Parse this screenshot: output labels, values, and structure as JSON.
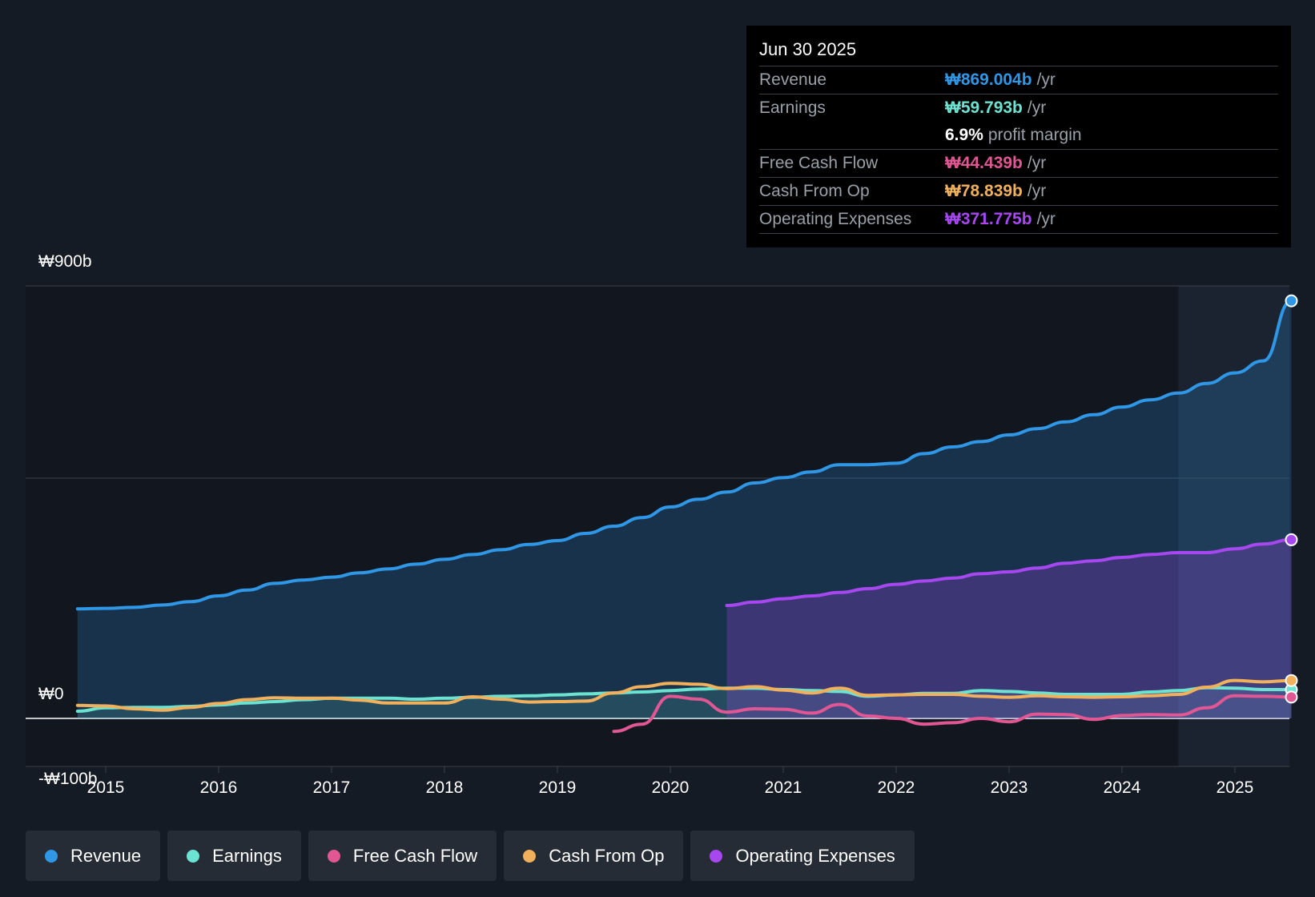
{
  "tooltip": {
    "date": "Jun 30 2025",
    "rows": [
      {
        "label": "Revenue",
        "value": "₩869.004b",
        "unit": "/yr",
        "color": "#2f97e6"
      },
      {
        "label": "Earnings",
        "value": "₩59.793b",
        "unit": "/yr",
        "color": "#6ce3d0"
      },
      {
        "label": "",
        "value": "6.9%",
        "unit": "profit margin",
        "color": "#ffffff"
      },
      {
        "label": "Free Cash Flow",
        "value": "₩44.439b",
        "unit": "/yr",
        "color": "#e05794"
      },
      {
        "label": "Cash From Op",
        "value": "₩78.839b",
        "unit": "/yr",
        "color": "#f0b05c"
      },
      {
        "label": "Operating Expenses",
        "value": "₩371.775b",
        "unit": "/yr",
        "color": "#a647f0"
      }
    ]
  },
  "legend": [
    {
      "label": "Revenue",
      "color": "#2f97e6"
    },
    {
      "label": "Earnings",
      "color": "#6ce3d0"
    },
    {
      "label": "Free Cash Flow",
      "color": "#e05794"
    },
    {
      "label": "Cash From Op",
      "color": "#f0b05c"
    },
    {
      "label": "Operating Expenses",
      "color": "#a647f0"
    }
  ],
  "chart_data": {
    "type": "line",
    "title": "",
    "currency": "KRW",
    "y_labels": {
      "top": "₩900b",
      "zero": "₩0",
      "bottom": "-₩100b"
    },
    "ylim": [
      -100,
      900
    ],
    "xlim": [
      2014.75,
      2025.5
    ],
    "x_ticks": [
      2015,
      2016,
      2017,
      2018,
      2019,
      2020,
      2021,
      2022,
      2023,
      2024,
      2025
    ],
    "x_tick_labels": [
      "2015",
      "2016",
      "2017",
      "2018",
      "2019",
      "2020",
      "2021",
      "2022",
      "2023",
      "2024",
      "2025"
    ],
    "gridlines_y": [
      900,
      500,
      0
    ],
    "highlight_start": 2024.5,
    "series": [
      {
        "name": "Revenue",
        "color": "#2f97e6",
        "fill": true,
        "x": [
          2014.75,
          2015.0,
          2015.25,
          2015.5,
          2015.75,
          2016.0,
          2016.25,
          2016.5,
          2016.75,
          2017.0,
          2017.25,
          2017.5,
          2017.75,
          2018.0,
          2018.25,
          2018.5,
          2018.75,
          2019.0,
          2019.25,
          2019.5,
          2019.75,
          2020.0,
          2020.25,
          2020.5,
          2020.75,
          2021.0,
          2021.25,
          2021.5,
          2021.75,
          2022.0,
          2022.25,
          2022.5,
          2022.75,
          2023.0,
          2023.25,
          2023.5,
          2023.75,
          2024.0,
          2024.25,
          2024.5,
          2024.75,
          2025.0,
          2025.25,
          2025.5
        ],
        "values": [
          228,
          229,
          231,
          236,
          243,
          255,
          267,
          281,
          288,
          294,
          303,
          311,
          321,
          331,
          341,
          351,
          362,
          370,
          385,
          400,
          418,
          440,
          456,
          471,
          490,
          501,
          513,
          528,
          528,
          531,
          551,
          565,
          576,
          590,
          603,
          617,
          632,
          648,
          663,
          677,
          697,
          719,
          744,
          869
        ]
      },
      {
        "name": "Earnings",
        "color": "#6ce3d0",
        "fill": true,
        "x": [
          2014.75,
          2015.0,
          2015.25,
          2015.5,
          2015.75,
          2016.0,
          2016.25,
          2016.5,
          2016.75,
          2017.0,
          2017.25,
          2017.5,
          2017.75,
          2018.0,
          2018.25,
          2018.5,
          2018.75,
          2019.0,
          2019.25,
          2019.5,
          2019.75,
          2020.0,
          2020.25,
          2020.5,
          2020.75,
          2021.0,
          2021.25,
          2021.5,
          2021.75,
          2022.0,
          2022.25,
          2022.5,
          2022.75,
          2023.0,
          2023.25,
          2023.5,
          2023.75,
          2024.0,
          2024.25,
          2024.5,
          2024.75,
          2025.0,
          2025.25,
          2025.5
        ],
        "values": [
          15,
          22,
          23,
          23,
          25,
          28,
          32,
          35,
          39,
          42,
          42,
          42,
          40,
          42,
          44,
          46,
          47,
          49,
          51,
          53,
          55,
          58,
          61,
          63,
          63,
          60,
          58,
          56,
          46,
          49,
          52,
          52,
          58,
          56,
          53,
          50,
          50,
          50,
          55,
          58,
          64,
          63,
          60,
          59.793
        ]
      },
      {
        "name": "Free Cash Flow",
        "color": "#e05794",
        "fill": false,
        "x": [
          2019.5,
          2019.75,
          2020.0,
          2020.25,
          2020.5,
          2020.75,
          2021.0,
          2021.25,
          2021.5,
          2021.75,
          2022.0,
          2022.25,
          2022.5,
          2022.75,
          2023.0,
          2023.25,
          2023.5,
          2023.75,
          2024.0,
          2024.25,
          2024.5,
          2024.75,
          2025.0,
          2025.25,
          2025.5
        ],
        "values": [
          -27,
          -12,
          46,
          40,
          13,
          20,
          19,
          11,
          29,
          5,
          0,
          -12,
          -9,
          0,
          -7,
          9,
          8,
          -2,
          6,
          8,
          7,
          22,
          47,
          46,
          44.439
        ]
      },
      {
        "name": "Cash From Op",
        "color": "#f0b05c",
        "fill": false,
        "x": [
          2014.75,
          2015.0,
          2015.25,
          2015.5,
          2015.75,
          2016.0,
          2016.25,
          2016.5,
          2016.75,
          2017.0,
          2017.25,
          2017.5,
          2017.75,
          2018.0,
          2018.25,
          2018.5,
          2018.75,
          2019.0,
          2019.25,
          2019.5,
          2019.75,
          2020.0,
          2020.25,
          2020.5,
          2020.75,
          2021.0,
          2021.25,
          2021.5,
          2021.75,
          2022.0,
          2022.25,
          2022.5,
          2022.75,
          2023.0,
          2023.25,
          2023.5,
          2023.75,
          2024.0,
          2024.25,
          2024.5,
          2024.75,
          2025.0,
          2025.25,
          2025.5
        ],
        "values": [
          27,
          26,
          20,
          17,
          23,
          31,
          39,
          43,
          42,
          42,
          38,
          32,
          32,
          32,
          45,
          40,
          34,
          35,
          36,
          53,
          66,
          73,
          71,
          62,
          66,
          59,
          53,
          63,
          48,
          49,
          50,
          50,
          46,
          44,
          47,
          45,
          44,
          45,
          47,
          50,
          65,
          79,
          76,
          78.839
        ]
      },
      {
        "name": "Operating Expenses",
        "color": "#a647f0",
        "fill": true,
        "x": [
          2020.5,
          2020.75,
          2021.0,
          2021.25,
          2021.5,
          2021.75,
          2022.0,
          2022.25,
          2022.5,
          2022.75,
          2023.0,
          2023.25,
          2023.5,
          2023.75,
          2024.0,
          2024.25,
          2024.5,
          2024.75,
          2025.0,
          2025.25,
          2025.5
        ],
        "values": [
          235,
          242,
          249,
          255,
          262,
          270,
          279,
          286,
          292,
          301,
          305,
          313,
          323,
          328,
          335,
          341,
          345,
          345,
          353,
          363,
          371.775
        ]
      }
    ]
  }
}
